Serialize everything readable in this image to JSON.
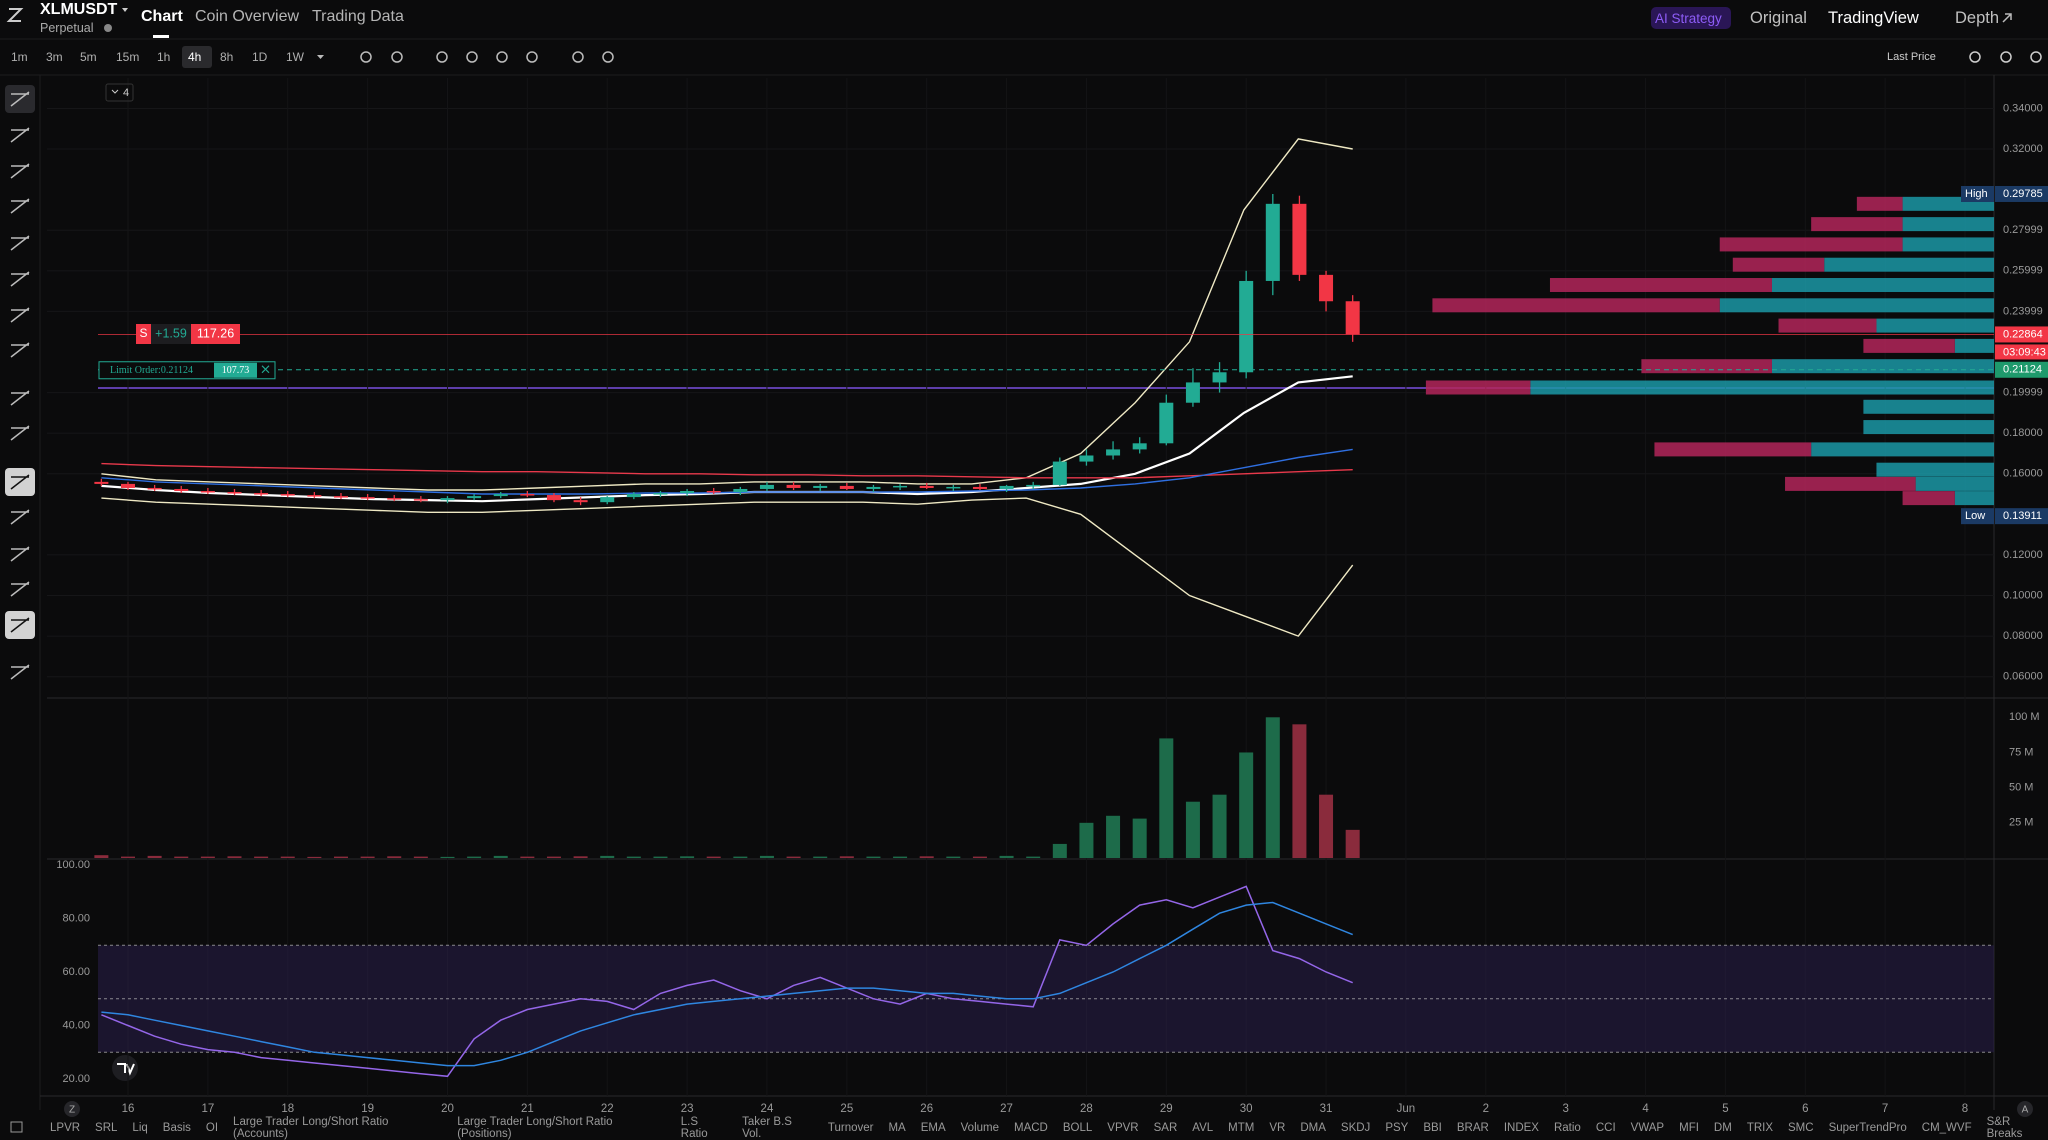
{
  "header": {
    "symbol": "XLMUSDT",
    "contract": "Perpetual",
    "tabs": [
      "Chart",
      "Coin Overview",
      "Trading Data"
    ],
    "right_tabs": [
      "AI Strategy",
      "Original",
      "TradingView",
      "Depth"
    ]
  },
  "toolbar": {
    "intervals": [
      "1m",
      "3m",
      "5m",
      "15m",
      "1h",
      "4h",
      "8h",
      "1D",
      "1W"
    ],
    "active_interval": "4h",
    "price_type": "Last Price"
  },
  "indicator_count": 4,
  "order": {
    "side": "S",
    "pnl": "+1.59",
    "size": 117.26,
    "limit_label": "Limit Order:0.21124",
    "limit_size": 107.73
  },
  "footer": {
    "left_button": "Z",
    "right_button": "A",
    "indicators": [
      "LPVR",
      "SRL",
      "Liq",
      "Basis",
      "OI",
      "Large Trader Long/Short Ratio (Accounts)",
      "Large Trader Long/Short Ratio (Positions)",
      "L.S Ratio",
      "Taker B.S Vol.",
      "Turnover",
      "MA",
      "EMA",
      "Volume",
      "MACD",
      "BOLL",
      "VPVR",
      "SAR",
      "AVL",
      "MTM",
      "VR",
      "DMA",
      "SKDJ",
      "PSY",
      "BBI",
      "BRAR",
      "INDEX",
      "Ratio",
      "CCI",
      "VWAP",
      "MFI",
      "DM",
      "TRIX",
      "SMC",
      "SuperTrendPro",
      "CM_WVF",
      "S&R Breaks"
    ]
  },
  "chart_data": [
    {
      "type": "candlestick",
      "ylim": [
        0.05,
        0.355
      ],
      "grid": true,
      "up_color": "#22ab94",
      "down_color": "#f23645",
      "yticks": [
        {
          "value": 0.34,
          "label": "0.34000"
        },
        {
          "value": 0.32,
          "label": "0.32000"
        },
        0.27999,
        0.25999,
        0.23999,
        0.19999,
        {
          "value": 0.18,
          "label": "0.18000"
        },
        {
          "value": 0.16,
          "label": "0.16000"
        },
        {
          "value": 0.12,
          "label": "0.12000"
        },
        {
          "value": 0.1,
          "label": "0.10000"
        },
        {
          "value": 0.08,
          "label": "0.08000"
        },
        {
          "value": 0.06,
          "label": "0.06000"
        }
      ],
      "x_labels": [
        "16",
        "17",
        "18",
        "19",
        "20",
        "21",
        "22",
        "23",
        "24",
        "25",
        "26",
        "27",
        "28",
        "29",
        "30",
        "31",
        "Jun",
        "2",
        "3",
        "4",
        "5",
        "6",
        "7",
        "8"
      ],
      "candles": [
        [
          0.156,
          0.1575,
          0.154,
          0.155
        ],
        [
          0.155,
          0.156,
          0.152,
          0.153
        ],
        [
          0.153,
          0.1545,
          0.1515,
          0.1525
        ],
        [
          0.1525,
          0.154,
          0.1505,
          0.1515
        ],
        [
          0.1515,
          0.153,
          0.15,
          0.151
        ],
        [
          0.151,
          0.1525,
          0.1495,
          0.1505
        ],
        [
          0.1505,
          0.152,
          0.149,
          0.15
        ],
        [
          0.15,
          0.1515,
          0.1485,
          0.1495
        ],
        [
          0.1495,
          0.151,
          0.148,
          0.149
        ],
        [
          0.149,
          0.1505,
          0.1475,
          0.1485
        ],
        [
          0.1485,
          0.15,
          0.147,
          0.148
        ],
        [
          0.148,
          0.1495,
          0.1465,
          0.1475
        ],
        [
          0.1475,
          0.149,
          0.146,
          0.147
        ],
        [
          0.147,
          0.149,
          0.1455,
          0.148
        ],
        [
          0.148,
          0.15,
          0.147,
          0.149
        ],
        [
          0.149,
          0.151,
          0.148,
          0.15
        ],
        [
          0.15,
          0.1515,
          0.1485,
          0.1495
        ],
        [
          0.1495,
          0.1505,
          0.146,
          0.147
        ],
        [
          0.147,
          0.1485,
          0.1445,
          0.146
        ],
        [
          0.146,
          0.149,
          0.145,
          0.1485
        ],
        [
          0.1485,
          0.151,
          0.1475,
          0.15
        ],
        [
          0.15,
          0.1515,
          0.1485,
          0.1505
        ],
        [
          0.1505,
          0.1525,
          0.149,
          0.1515
        ],
        [
          0.1515,
          0.153,
          0.15,
          0.151
        ],
        [
          0.151,
          0.1535,
          0.1495,
          0.1525
        ],
        [
          0.1525,
          0.156,
          0.1515,
          0.1545
        ],
        [
          0.1545,
          0.156,
          0.152,
          0.153
        ],
        [
          0.153,
          0.155,
          0.1515,
          0.154
        ],
        [
          0.154,
          0.1555,
          0.152,
          0.1525
        ],
        [
          0.1525,
          0.1545,
          0.151,
          0.1535
        ],
        [
          0.1535,
          0.155,
          0.152,
          0.154
        ],
        [
          0.154,
          0.1555,
          0.1525,
          0.153
        ],
        [
          0.153,
          0.1545,
          0.1515,
          0.1535
        ],
        [
          0.1535,
          0.155,
          0.152,
          0.1525
        ],
        [
          0.1525,
          0.1545,
          0.151,
          0.154
        ],
        [
          0.154,
          0.156,
          0.1525,
          0.1545
        ],
        [
          0.1545,
          0.168,
          0.154,
          0.166
        ],
        [
          0.166,
          0.172,
          0.164,
          0.169
        ],
        [
          0.169,
          0.176,
          0.167,
          0.172
        ],
        [
          0.172,
          0.178,
          0.17,
          0.175
        ],
        [
          0.175,
          0.199,
          0.174,
          0.195
        ],
        [
          0.195,
          0.212,
          0.193,
          0.205
        ],
        [
          0.205,
          0.215,
          0.2,
          0.21
        ],
        [
          0.21,
          0.26,
          0.207,
          0.255
        ],
        [
          0.255,
          0.29785,
          0.248,
          0.293
        ],
        [
          0.293,
          0.297,
          0.255,
          0.258
        ],
        [
          0.258,
          0.26,
          0.24,
          0.245
        ],
        [
          0.245,
          0.248,
          0.225,
          0.22864
        ]
      ],
      "lines": [
        {
          "color": "#efe9c4",
          "values": [
            0.16,
            0.157,
            0.156,
            0.155,
            0.154,
            0.153,
            0.152,
            0.152,
            0.153,
            0.154,
            0.155,
            0.155,
            0.156,
            0.156,
            0.156,
            0.155,
            0.155,
            0.158,
            0.17,
            0.195,
            0.225,
            0.29,
            0.325,
            0.32
          ]
        },
        {
          "color": "#efe9c4",
          "values": [
            0.148,
            0.146,
            0.145,
            0.144,
            0.143,
            0.142,
            0.141,
            0.141,
            0.142,
            0.143,
            0.144,
            0.145,
            0.146,
            0.146,
            0.146,
            0.145,
            0.147,
            0.148,
            0.14,
            0.12,
            0.1,
            0.09,
            0.08,
            0.115
          ]
        },
        {
          "color": "#ffffff",
          "values": [
            0.154,
            0.152,
            0.1505,
            0.1495,
            0.1485,
            0.1475,
            0.147,
            0.1465,
            0.1475,
            0.1485,
            0.1495,
            0.15,
            0.151,
            0.151,
            0.151,
            0.15,
            0.151,
            0.153,
            0.155,
            0.16,
            0.17,
            0.19,
            0.205,
            0.208
          ]
        },
        {
          "color": "#e8394b",
          "values": [
            0.165,
            0.164,
            0.1635,
            0.163,
            0.1625,
            0.162,
            0.1615,
            0.161,
            0.161,
            0.1605,
            0.16,
            0.16,
            0.1595,
            0.1595,
            0.159,
            0.159,
            0.1585,
            0.158,
            0.158,
            0.158,
            0.159,
            0.16,
            0.161,
            0.162
          ]
        },
        {
          "color": "#2f6fe0",
          "values": [
            0.158,
            0.156,
            0.155,
            0.154,
            0.153,
            0.152,
            0.151,
            0.15,
            0.15,
            0.15,
            0.1505,
            0.1505,
            0.151,
            0.151,
            0.151,
            0.151,
            0.1515,
            0.152,
            0.153,
            0.155,
            0.158,
            0.163,
            0.168,
            0.172
          ]
        }
      ],
      "high": {
        "label": "High",
        "value": 0.29785
      },
      "low": {
        "label": "Low",
        "value": 0.13911
      },
      "last_price": 0.22864,
      "countdown": "03:09:43",
      "limit_price": 0.21124,
      "volume_profile": {
        "colors": [
          "#1b98a6",
          "#b3265a"
        ],
        "rows": [
          [
            0.293,
            70,
            35
          ],
          [
            0.283,
            70,
            70
          ],
          [
            0.273,
            70,
            140
          ],
          [
            0.263,
            130,
            70
          ],
          [
            0.253,
            170,
            170
          ],
          [
            0.243,
            210,
            220
          ],
          [
            0.233,
            90,
            75
          ],
          [
            0.223,
            30,
            70
          ],
          [
            0.213,
            170,
            100
          ],
          [
            0.2025,
            355,
            80
          ],
          [
            0.193,
            100,
            0
          ],
          [
            0.183,
            100,
            0
          ],
          [
            0.172,
            140,
            120
          ],
          [
            0.162,
            90,
            0
          ],
          [
            0.155,
            60,
            100
          ],
          [
            0.148,
            30,
            40
          ]
        ]
      }
    },
    {
      "type": "bar",
      "ylim": [
        0,
        113
      ],
      "up_color": "#1d6b4a",
      "down_color": "#8a2b3c",
      "yticks": [
        {
          "value": 100,
          "label": "100 M"
        },
        {
          "value": 75,
          "label": "75 M"
        },
        {
          "value": 50,
          "label": "50 M"
        },
        {
          "value": 25,
          "label": "25 M"
        }
      ],
      "values": [
        2,
        1,
        1.5,
        1,
        1,
        1.2,
        1,
        1,
        0.8,
        1,
        1,
        1.2,
        1,
        0.8,
        1,
        1.5,
        1,
        1,
        1.2,
        1.5,
        1,
        1,
        1.2,
        1,
        1,
        1.5,
        1,
        1,
        1.2,
        1,
        1,
        1.2,
        1,
        1,
        1.5,
        1,
        10,
        25,
        30,
        28,
        85,
        40,
        45,
        75,
        100,
        95,
        45,
        20
      ]
    },
    {
      "type": "line",
      "ylim": [
        14.4,
        101.5
      ],
      "band": [
        30,
        70
      ],
      "mid_level": 50,
      "band_color": "#2a1f4a",
      "yticks": [
        {
          "value": 100,
          "label": "100.00"
        },
        {
          "value": 80,
          "label": "80.00"
        },
        {
          "value": 60,
          "label": "60.00"
        },
        {
          "value": 40,
          "label": "40.00"
        },
        {
          "value": 20,
          "label": "20.00"
        }
      ],
      "series": [
        {
          "color": "#9466e8",
          "values": [
            44,
            40,
            36,
            33,
            31,
            30,
            28,
            27,
            26,
            25,
            24,
            23,
            22,
            21,
            35,
            42,
            46,
            48,
            50,
            49,
            46,
            52,
            55,
            57,
            53,
            50,
            55,
            58,
            54,
            50,
            48,
            52,
            50,
            49,
            48,
            47,
            72,
            70,
            78,
            85,
            87,
            84,
            88,
            92,
            68,
            65,
            60,
            56
          ]
        },
        {
          "color": "#2f86e0",
          "values": [
            45,
            44,
            42,
            40,
            38,
            36,
            34,
            32,
            30,
            29,
            28,
            27,
            26,
            25,
            25,
            27,
            30,
            34,
            38,
            41,
            44,
            46,
            48,
            49,
            50,
            51,
            52,
            53,
            54,
            54,
            53,
            52,
            52,
            51,
            50,
            50,
            52,
            56,
            60,
            65,
            70,
            76,
            82,
            85,
            86,
            82,
            78,
            74
          ]
        }
      ]
    }
  ]
}
